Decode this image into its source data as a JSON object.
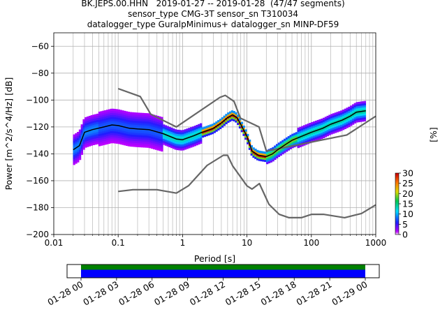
{
  "title_lines": [
    "BK.JEPS.00.HHN   2019-01-27 -- 2019-01-28  (47/47 segments)",
    "sensor_type CMG-3T sensor_sn T310034",
    "datalogger_type GuralpMinimus+ datalogger_sn MINP-DF59"
  ],
  "chart_data": {
    "type": "heatmap",
    "xlabel": "Period [s]",
    "ylabel": "Power [m^2/s^4/Hz] [dB]",
    "xscale": "log",
    "xlim": [
      0.01,
      1000
    ],
    "ylim": [
      -200,
      -50
    ],
    "grid": true,
    "x_ticks": [
      0.01,
      0.1,
      1,
      10,
      100,
      1000
    ],
    "x_tick_labels": [
      "0.01",
      "0.1",
      "1",
      "10",
      "100",
      "1000"
    ],
    "y_ticks": [
      -200,
      -180,
      -160,
      -140,
      -120,
      -100,
      -80,
      -60
    ],
    "y_tick_labels": [
      "−200",
      "−180",
      "−160",
      "−140",
      "−120",
      "−100",
      "−80",
      "−60"
    ],
    "colorbar": {
      "label": "[%]",
      "range": [
        0,
        30
      ],
      "ticks": [
        0,
        5,
        10,
        15,
        20,
        25,
        30
      ]
    },
    "series": [
      {
        "name": "",
        "role": "high noise model",
        "x": [
          0.1,
          0.22,
          0.32,
          0.8,
          3.8,
          4.6,
          6.3,
          7.9,
          15.4,
          20,
          354.8,
          1000
        ],
        "y": [
          -91.5,
          -97.4,
          -110.5,
          -120,
          -98,
          -96.5,
          -101,
          -113.5,
          -120,
          -138,
          -126,
          -112
        ]
      },
      {
        "name": "",
        "role": "low noise model",
        "x": [
          0.1,
          0.17,
          0.4,
          0.8,
          1.24,
          2.4,
          4.3,
          5.0,
          6.0,
          10.0,
          12.0,
          15.6,
          21.9,
          31.6,
          45,
          70,
          101,
          154,
          328,
          600,
          1000
        ],
        "y": [
          -168,
          -166.7,
          -166.7,
          -169.2,
          -163.7,
          -148.6,
          -141.1,
          -141.1,
          -149,
          -163.8,
          -166.2,
          -162.1,
          -177.5,
          -185,
          -187.5,
          -187.5,
          -185,
          -185,
          -187.5,
          -184.4,
          -178
        ]
      },
      {
        "name": "",
        "role": "mean PSD",
        "x": [
          0.02,
          0.025,
          0.03,
          0.04,
          0.06,
          0.08,
          0.1,
          0.15,
          0.2,
          0.3,
          0.5,
          0.8,
          1.0,
          1.5,
          2.0,
          3.0,
          4.0,
          5.0,
          6.0,
          7.0,
          8.0,
          10,
          12,
          15,
          20,
          25,
          30,
          40,
          50,
          70,
          100,
          150,
          200,
          300,
          400,
          500,
          700
        ],
        "y": [
          -137,
          -134,
          -124,
          -122,
          -120,
          -118.5,
          -119,
          -121,
          -121.5,
          -122,
          -125,
          -129,
          -129.5,
          -126.5,
          -124,
          -121,
          -117,
          -113,
          -111,
          -113,
          -118,
          -127,
          -138,
          -141,
          -142,
          -140,
          -137,
          -133,
          -130,
          -127,
          -124,
          -121,
          -118,
          -115,
          -112,
          -109,
          -108
        ]
      }
    ]
  }
}
